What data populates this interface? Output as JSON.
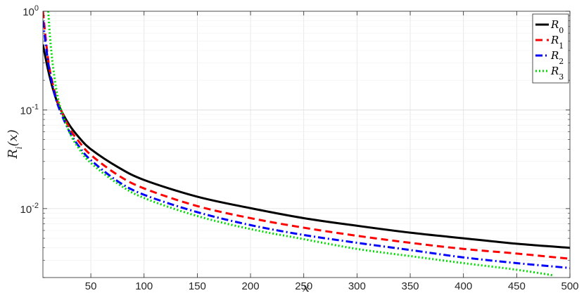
{
  "chart_data": {
    "type": "line",
    "title": "",
    "xlabel": "x",
    "ylabel": "R_i(x)",
    "xlim": [
      5,
      500
    ],
    "ylim": [
      0.002,
      1
    ],
    "yscale": "log",
    "grid": true,
    "legend_position": "top-right",
    "x_ticks": [
      50,
      100,
      150,
      200,
      250,
      300,
      350,
      400,
      450,
      500
    ],
    "x_tick_labels": [
      "50",
      "100",
      "150",
      "200",
      "250",
      "300",
      "350",
      "400",
      "450",
      "500"
    ],
    "y_ticks": [
      0.01,
      0.1,
      1
    ],
    "y_tick_labels": [
      {
        "base": "10",
        "exp": "-2"
      },
      {
        "base": "10",
        "exp": "-1"
      },
      {
        "base": "10",
        "exp": "0"
      }
    ],
    "series": [
      {
        "name": "R0",
        "name_base": "R",
        "name_sub": "0",
        "color": "#000000",
        "dash": "solid",
        "x": [
          5,
          10,
          15,
          20,
          30,
          40,
          50,
          75,
          100,
          150,
          200,
          250,
          300,
          350,
          400,
          450,
          500
        ],
        "y": [
          0.46,
          0.25,
          0.155,
          0.11,
          0.07,
          0.051,
          0.04,
          0.0265,
          0.0195,
          0.0132,
          0.0101,
          0.008,
          0.0067,
          0.0057,
          0.005,
          0.0044,
          0.004
        ]
      },
      {
        "name": "R1",
        "name_base": "R",
        "name_sub": "1",
        "color": "#ff0000",
        "dash": "dashed",
        "x": [
          5,
          10,
          15,
          20,
          30,
          40,
          50,
          75,
          100,
          150,
          200,
          250,
          300,
          350,
          400,
          450,
          500
        ],
        "y": [
          1.0,
          0.32,
          0.17,
          0.112,
          0.065,
          0.046,
          0.035,
          0.022,
          0.016,
          0.0106,
          0.008,
          0.0064,
          0.0053,
          0.0045,
          0.0039,
          0.0035,
          0.0031
        ]
      },
      {
        "name": "R2",
        "name_base": "R",
        "name_sub": "2",
        "color": "#0000ff",
        "dash": "dashdot",
        "x": [
          5,
          10,
          15,
          20,
          30,
          40,
          50,
          75,
          100,
          150,
          200,
          250,
          300,
          350,
          400,
          450,
          500
        ],
        "y": [
          0.8,
          0.3,
          0.16,
          0.105,
          0.06,
          0.041,
          0.031,
          0.019,
          0.0138,
          0.0092,
          0.0068,
          0.0054,
          0.0045,
          0.0038,
          0.0032,
          0.0028,
          0.0025
        ]
      },
      {
        "name": "R3",
        "name_base": "R",
        "name_sub": "3",
        "color": "#00dd00",
        "dash": "dotted",
        "x": [
          10,
          12,
          15,
          20,
          30,
          40,
          50,
          75,
          100,
          150,
          200,
          250,
          300,
          350,
          400,
          450,
          485
        ],
        "y": [
          1.0,
          0.5,
          0.25,
          0.12,
          0.059,
          0.039,
          0.029,
          0.018,
          0.0128,
          0.0084,
          0.0062,
          0.0049,
          0.0039,
          0.0033,
          0.0028,
          0.0024,
          0.0021
        ]
      }
    ]
  }
}
